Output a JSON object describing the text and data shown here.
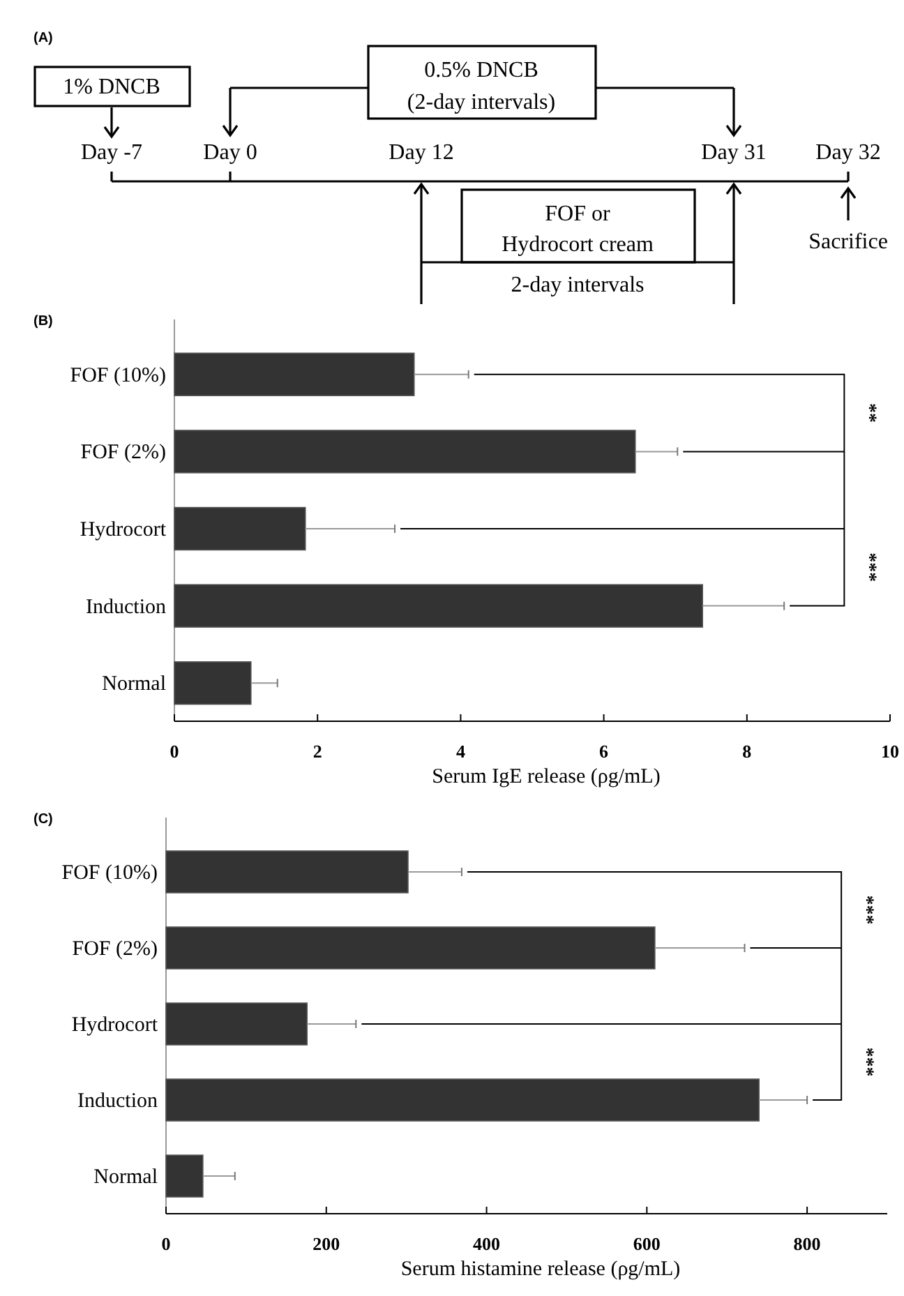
{
  "chart_data": [
    {
      "type": "other",
      "title": "(A)",
      "annotations": [
        "1% DNCB",
        "0.5% DNCB",
        "(2-day intervals)",
        "Day -7",
        "Day 0",
        "Day 12",
        "Day 31",
        "Day 32",
        "FOF or",
        "Hydrocort cream",
        "2-day intervals",
        "Sacrifice"
      ]
    },
    {
      "type": "bar",
      "title": "(B)",
      "orientation": "horizontal",
      "categories": [
        "FOF (10%)",
        "FOF (2%)",
        "Hydrocort",
        "Induction",
        "Normal"
      ],
      "values": [
        3.35,
        6.44,
        1.83,
        7.38,
        1.07
      ],
      "errors": [
        [
          3.35,
          4.11
        ],
        [
          6.44,
          7.03
        ],
        [
          1.83,
          3.08
        ],
        [
          7.38,
          8.52
        ],
        [
          1.07,
          1.44
        ]
      ],
      "color": "#333333",
      "xlim": [
        0,
        10
      ],
      "xticks": [
        0,
        2,
        4,
        6,
        8,
        10
      ],
      "xlabel": "Serum IgE release (ρg/mL)",
      "annotations": [
        "**",
        "***"
      ]
    },
    {
      "type": "bar",
      "title": "(C)",
      "orientation": "horizontal",
      "categories": [
        "FOF (10%)",
        "FOF (2%)",
        "Hydrocort",
        "Induction",
        "Normal"
      ],
      "values": [
        302,
        610,
        176,
        740,
        46
      ],
      "errors": [
        [
          302,
          369
        ],
        [
          610,
          722
        ],
        [
          176,
          237
        ],
        [
          740,
          800
        ],
        [
          46,
          86
        ]
      ],
      "color": "#333333",
      "xlim": [
        0,
        900
      ],
      "xticks": [
        0,
        200,
        400,
        600,
        800
      ],
      "xlabel": "Serum histamine release (ρg/mL)",
      "annotations": [
        "***",
        "***"
      ]
    }
  ]
}
